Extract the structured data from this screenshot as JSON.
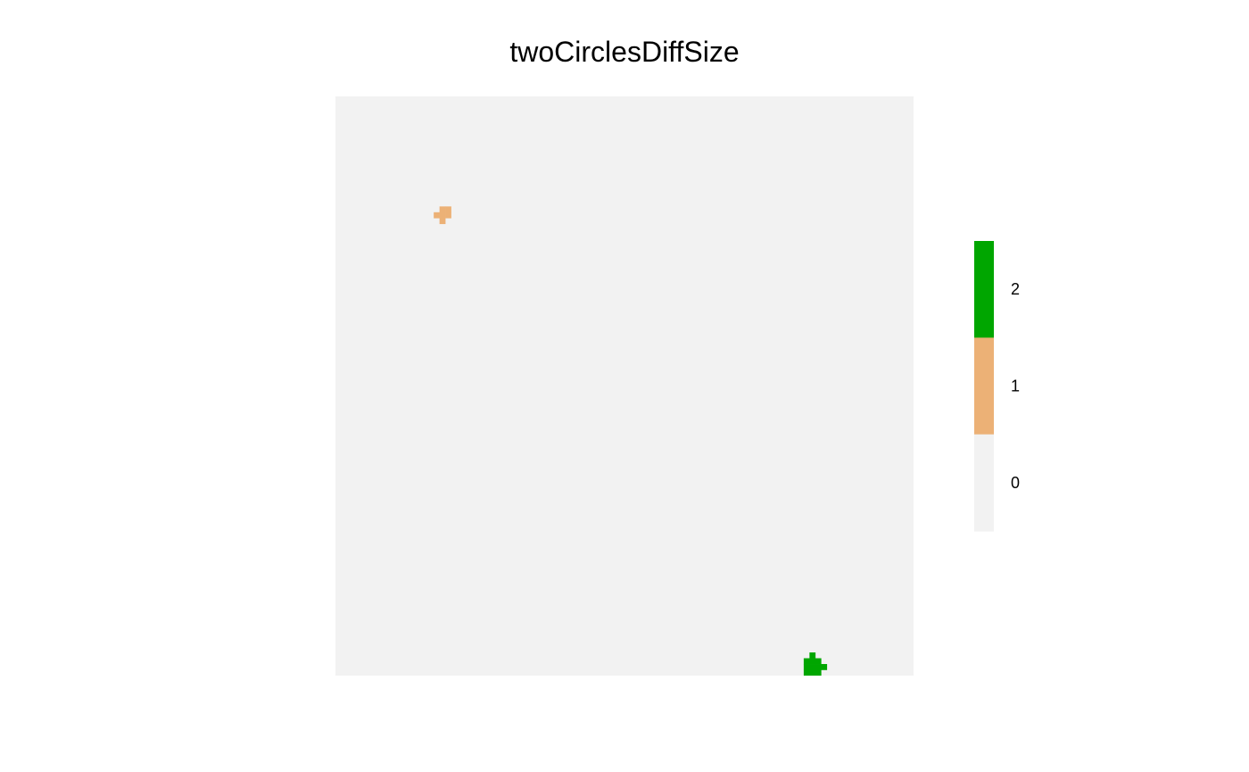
{
  "chart_data": {
    "type": "heatmap",
    "title": "twoCirclesDiffSize",
    "xlabel": "",
    "ylabel": "",
    "grid": false,
    "axes_visible": false,
    "legend_placement": "right",
    "raster": {
      "ncol": 100,
      "nrow": 100,
      "background_value": 0,
      "cells": [
        {
          "row": 19,
          "col": 18,
          "value": 1
        },
        {
          "row": 19,
          "col": 19,
          "value": 1
        },
        {
          "row": 20,
          "col": 17,
          "value": 1
        },
        {
          "row": 20,
          "col": 18,
          "value": 1
        },
        {
          "row": 20,
          "col": 19,
          "value": 1
        },
        {
          "row": 21,
          "col": 18,
          "value": 1
        },
        {
          "row": 96,
          "col": 82,
          "value": 2
        },
        {
          "row": 97,
          "col": 81,
          "value": 2
        },
        {
          "row": 97,
          "col": 82,
          "value": 2
        },
        {
          "row": 97,
          "col": 83,
          "value": 2
        },
        {
          "row": 98,
          "col": 81,
          "value": 2
        },
        {
          "row": 98,
          "col": 82,
          "value": 2
        },
        {
          "row": 98,
          "col": 83,
          "value": 2
        },
        {
          "row": 98,
          "col": 84,
          "value": 2
        },
        {
          "row": 99,
          "col": 81,
          "value": 2
        },
        {
          "row": 99,
          "col": 82,
          "value": 2
        },
        {
          "row": 99,
          "col": 83,
          "value": 2
        }
      ]
    },
    "legend": {
      "entries": [
        {
          "label": "2",
          "value": 2,
          "color": "#00a600"
        },
        {
          "label": "1",
          "value": 1,
          "color": "#ecb176"
        },
        {
          "label": "0",
          "value": 0,
          "color": "#f2f2f2"
        }
      ]
    }
  }
}
